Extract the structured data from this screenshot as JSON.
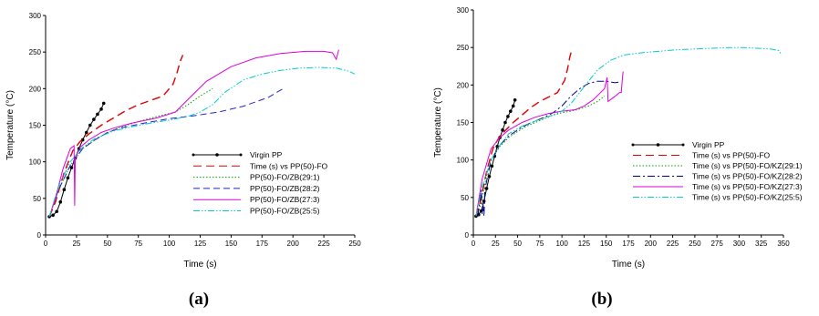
{
  "chart_data": [
    {
      "type": "line",
      "panel_label": "(a)",
      "xlabel": "Time (s)",
      "ylabel": "Temperature (°C)",
      "xlim": [
        0,
        250
      ],
      "ylim": [
        0,
        300
      ],
      "xticks": [
        "0",
        "25",
        "50",
        "75",
        "100",
        "125",
        "150",
        "175",
        "200",
        "225",
        "250"
      ],
      "yticks": [
        "0",
        "50",
        "100",
        "150",
        "200",
        "250",
        "300"
      ],
      "legend_position": "right-middle",
      "series": [
        {
          "name": "Virgin PP",
          "color": "#000000",
          "dash": "solid",
          "marker": true,
          "x": [
            3,
            6,
            9,
            12,
            15,
            18,
            21,
            24,
            27,
            30,
            33,
            36,
            39,
            42,
            45,
            47
          ],
          "y": [
            25,
            27,
            32,
            45,
            62,
            78,
            92,
            105,
            118,
            130,
            140,
            150,
            158,
            165,
            172,
            180
          ]
        },
        {
          "name": "Time (s) vs PP(50)-FO",
          "color": "#dd0000",
          "dash": "long",
          "x": [
            3,
            8,
            15,
            22,
            28,
            35,
            45,
            55,
            65,
            75,
            85,
            95,
            100,
            103,
            106,
            109,
            111
          ],
          "y": [
            25,
            45,
            85,
            115,
            128,
            138,
            150,
            160,
            170,
            178,
            184,
            190,
            200,
            206,
            220,
            238,
            246
          ]
        },
        {
          "name": "PP(50)-FO/ZB(29:1)",
          "color": "#00a000",
          "dash": "dot",
          "x": [
            3,
            10,
            20,
            30,
            40,
            50,
            60,
            75,
            90,
            105,
            115,
            125,
            135
          ],
          "y": [
            25,
            60,
            95,
            118,
            130,
            140,
            147,
            155,
            162,
            168,
            178,
            190,
            200
          ]
        },
        {
          "name": "PP(50)-FO/ZB(28:2)",
          "color": "#2222cc",
          "dash": "dash",
          "x": [
            3,
            10,
            20,
            30,
            40,
            50,
            60,
            80,
            100,
            120,
            140,
            160,
            180,
            192
          ],
          "y": [
            25,
            60,
            95,
            118,
            130,
            140,
            146,
            153,
            159,
            163,
            168,
            176,
            188,
            200
          ]
        },
        {
          "name": "PP(50)-FO/ZB(27:3)",
          "color": "#dd00dd",
          "dash": "solid",
          "x": [
            3,
            8,
            14,
            20,
            23,
            23.5,
            24,
            28,
            35,
            45,
            55,
            70,
            90,
            105,
            115,
            130,
            150,
            170,
            190,
            210,
            225,
            232,
            235,
            237
          ],
          "y": [
            25,
            50,
            90,
            118,
            122,
            40,
            105,
            120,
            130,
            140,
            146,
            153,
            160,
            168,
            185,
            210,
            230,
            242,
            248,
            251,
            251,
            249,
            240,
            253
          ]
        },
        {
          "name": "PP(50)-FO/ZB(25:5)",
          "color": "#00cccc",
          "dash": "dashdotdot",
          "x": [
            3,
            10,
            20,
            30,
            40,
            55,
            70,
            85,
            100,
            115,
            125,
            135,
            145,
            160,
            175,
            190,
            205,
            220,
            235,
            245,
            250
          ],
          "y": [
            25,
            65,
            100,
            120,
            132,
            142,
            148,
            153,
            157,
            162,
            168,
            178,
            195,
            212,
            220,
            225,
            228,
            229,
            228,
            224,
            220
          ]
        }
      ]
    },
    {
      "type": "line",
      "panel_label": "(b)",
      "xlabel": "Time (s)",
      "ylabel": "Temperature (°C)",
      "xlim": [
        0,
        350
      ],
      "ylim": [
        0,
        300
      ],
      "xticks": [
        "0",
        "25",
        "50",
        "75",
        "100",
        "125",
        "150",
        "175",
        "200",
        "225",
        "250",
        "275",
        "300",
        "325",
        "350"
      ],
      "yticks": [
        "0",
        "50",
        "100",
        "150",
        "200",
        "250",
        "300"
      ],
      "legend_position": "right-middle",
      "series": [
        {
          "name": "Virgin PP",
          "color": "#000000",
          "dash": "solid",
          "marker": true,
          "x": [
            3,
            6,
            9,
            12,
            15,
            18,
            21,
            24,
            27,
            30,
            33,
            36,
            39,
            42,
            45,
            47
          ],
          "y": [
            25,
            27,
            32,
            45,
            62,
            78,
            92,
            105,
            118,
            130,
            140,
            150,
            158,
            165,
            172,
            180
          ]
        },
        {
          "name": "Time (s) vs PP(50)-FO",
          "color": "#dd0000",
          "dash": "long",
          "x": [
            3,
            8,
            15,
            22,
            28,
            35,
            45,
            55,
            65,
            75,
            85,
            95,
            100,
            103,
            106,
            109,
            111
          ],
          "y": [
            25,
            45,
            85,
            115,
            128,
            138,
            150,
            160,
            170,
            178,
            184,
            190,
            200,
            206,
            220,
            238,
            246
          ]
        },
        {
          "name": "Time (s) vs PP(50)-FO/KZ(29:1)",
          "color": "#00a000",
          "dash": "dot",
          "x": [
            5,
            10,
            15,
            20,
            30,
            40,
            50,
            60,
            70,
            80,
            90,
            100,
            110,
            120,
            130,
            140,
            148
          ],
          "y": [
            25,
            50,
            80,
            100,
            118,
            130,
            138,
            145,
            150,
            155,
            160,
            163,
            165,
            168,
            172,
            178,
            185
          ]
        },
        {
          "name": "Time (s) vs PP(50)-FO/KZ(28:2)",
          "color": "#000080",
          "dash": "dashdot",
          "x": [
            5,
            9,
            10,
            11,
            12,
            13,
            20,
            30,
            40,
            50,
            60,
            70,
            80,
            90,
            100,
            110,
            120,
            130,
            140,
            150,
            160,
            165
          ],
          "y": [
            25,
            60,
            28,
            40,
            25,
            60,
            100,
            120,
            132,
            140,
            147,
            152,
            157,
            163,
            172,
            185,
            195,
            202,
            205,
            205,
            203,
            204
          ]
        },
        {
          "name": "Time (s) vs PP(50)-FO/KZ(27:3)",
          "color": "#dd00dd",
          "dash": "solid",
          "x": [
            3,
            10,
            20,
            30,
            40,
            55,
            70,
            85,
            100,
            115,
            125,
            135,
            142,
            148,
            150,
            151,
            152,
            160,
            165,
            167,
            168,
            169
          ],
          "y": [
            25,
            75,
            115,
            130,
            140,
            150,
            157,
            162,
            165,
            167,
            172,
            180,
            188,
            195,
            205,
            210,
            178,
            185,
            190,
            190,
            205,
            218
          ]
        },
        {
          "name": "Time (s) vs PP(50)-FO/KZ(25:5)",
          "color": "#00cccc",
          "dash": "dashdotdot",
          "x": [
            3,
            10,
            20,
            30,
            40,
            55,
            70,
            85,
            100,
            110,
            120,
            130,
            140,
            155,
            170,
            190,
            210,
            230,
            250,
            270,
            290,
            305,
            320,
            335,
            345,
            348
          ],
          "y": [
            25,
            65,
            100,
            120,
            135,
            145,
            152,
            158,
            165,
            175,
            190,
            205,
            220,
            233,
            240,
            243,
            245,
            247,
            248,
            249,
            250,
            250,
            249,
            248,
            246,
            240
          ]
        }
      ]
    }
  ]
}
